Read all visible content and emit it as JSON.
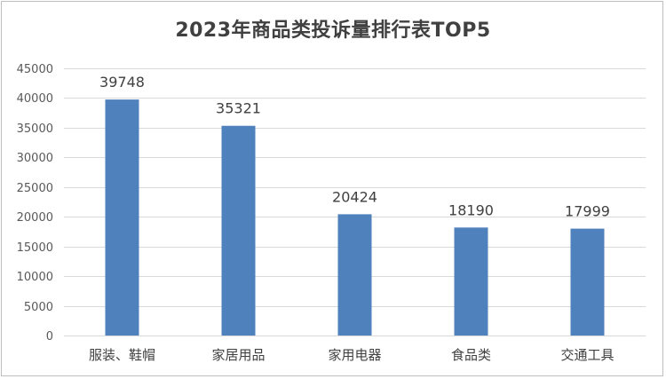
{
  "chart_data": {
    "type": "bar",
    "title": "2023年商品类投诉量排行表TOP5",
    "categories": [
      "服装、鞋帽",
      "家居用品",
      "家用电器",
      "食品类",
      "交通工具"
    ],
    "values": [
      39748,
      35321,
      20424,
      18190,
      17999
    ],
    "data_labels": [
      "39748",
      "35321",
      "20424",
      "18190",
      "17999"
    ],
    "ylim": [
      0,
      45000
    ],
    "yticks": [
      0,
      5000,
      10000,
      15000,
      20000,
      25000,
      30000,
      35000,
      40000,
      45000
    ],
    "ytick_labels": [
      "0",
      "5000",
      "10000",
      "15000",
      "20000",
      "25000",
      "30000",
      "35000",
      "40000",
      "45000"
    ],
    "grid": true,
    "legend": "none",
    "bar_color": "#4f81bd",
    "grid_color": "#d9d9d9"
  }
}
